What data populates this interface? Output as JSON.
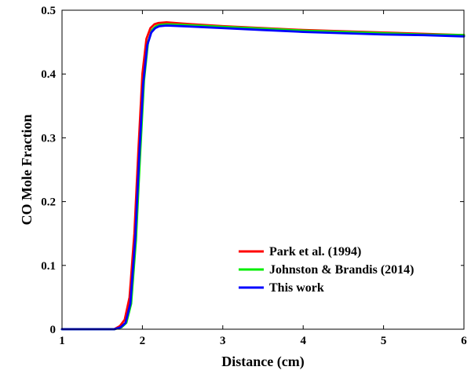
{
  "chart_data": {
    "type": "line",
    "title": "",
    "xlabel": "Distance (cm)",
    "ylabel": "CO Mole Fraction",
    "xlim": [
      1,
      6
    ],
    "ylim": [
      0,
      0.5
    ],
    "xticks": [
      1,
      2,
      3,
      4,
      5,
      6
    ],
    "xtick_labels": [
      "1",
      "2",
      "3",
      "4",
      "5",
      "6"
    ],
    "yticks": [
      0,
      0.1,
      0.2,
      0.3,
      0.4,
      0.5
    ],
    "ytick_labels": [
      "0",
      "0.1",
      "0.2",
      "0.3",
      "0.4",
      "0.5"
    ],
    "grid": false,
    "legend_position": "bottom-right",
    "series": [
      {
        "name": "Park et al. (1994)",
        "color": "#ff0000",
        "x": [
          1.0,
          1.65,
          1.72,
          1.78,
          1.84,
          1.9,
          1.95,
          2.0,
          2.05,
          2.1,
          2.15,
          2.2,
          2.3,
          2.5,
          3.0,
          3.5,
          4.0,
          4.5,
          5.0,
          5.5,
          6.0
        ],
        "y": [
          0.0,
          0.0,
          0.005,
          0.015,
          0.05,
          0.15,
          0.28,
          0.4,
          0.455,
          0.472,
          0.478,
          0.48,
          0.481,
          0.479,
          0.475,
          0.472,
          0.469,
          0.467,
          0.465,
          0.463,
          0.461
        ]
      },
      {
        "name": "Johnston & Brandis (2014)",
        "color": "#00ee00",
        "x": [
          1.0,
          1.65,
          1.74,
          1.8,
          1.86,
          1.92,
          1.97,
          2.02,
          2.07,
          2.12,
          2.17,
          2.22,
          2.3,
          2.5,
          3.0,
          3.5,
          4.0,
          4.5,
          5.0,
          5.5,
          6.0
        ],
        "y": [
          0.0,
          0.0,
          0.003,
          0.01,
          0.04,
          0.14,
          0.27,
          0.39,
          0.45,
          0.469,
          0.475,
          0.477,
          0.478,
          0.477,
          0.474,
          0.471,
          0.468,
          0.466,
          0.464,
          0.462,
          0.461
        ]
      },
      {
        "name": "This work",
        "color": "#0000ff",
        "x": [
          1.0,
          1.65,
          1.73,
          1.79,
          1.85,
          1.91,
          1.96,
          2.01,
          2.06,
          2.11,
          2.16,
          2.21,
          2.3,
          2.5,
          3.0,
          3.5,
          4.0,
          4.5,
          5.0,
          5.5,
          6.0
        ],
        "y": [
          0.0,
          0.0,
          0.003,
          0.01,
          0.04,
          0.14,
          0.27,
          0.385,
          0.445,
          0.465,
          0.472,
          0.475,
          0.476,
          0.475,
          0.472,
          0.469,
          0.466,
          0.464,
          0.462,
          0.461,
          0.459
        ]
      }
    ]
  }
}
